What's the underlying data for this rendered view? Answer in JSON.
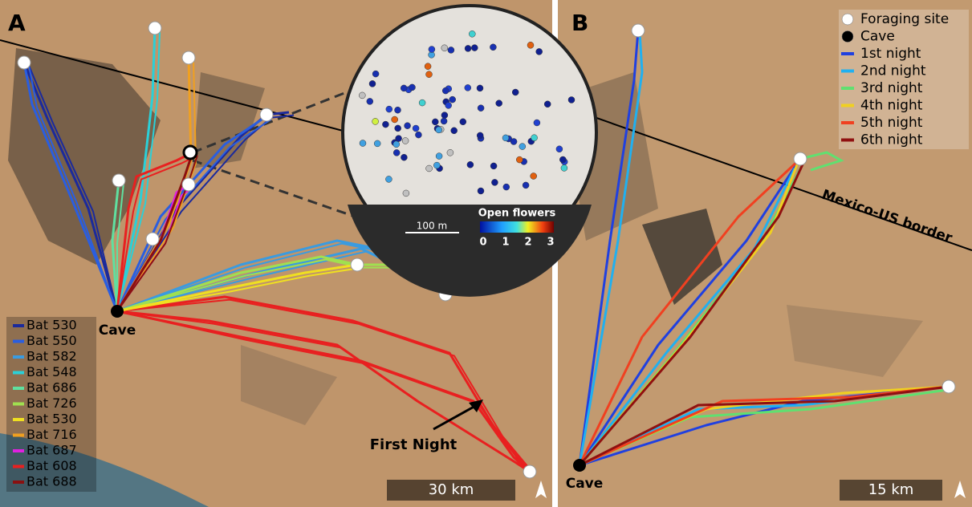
{
  "panel_a": {
    "label": "A",
    "cave_label": "Cave",
    "annotation": "First Night",
    "scale_bar": "30 km",
    "legend": [
      {
        "name": "Bat 530",
        "color": "#1b2a9c"
      },
      {
        "name": "Bat 550",
        "color": "#2a5ee0"
      },
      {
        "name": "Bat 582",
        "color": "#3a9be0"
      },
      {
        "name": "Bat 548",
        "color": "#2ad0d8"
      },
      {
        "name": "Bat 686",
        "color": "#5fe0a0"
      },
      {
        "name": "Bat 726",
        "color": "#a0e050"
      },
      {
        "name": "Bat 530",
        "color": "#f0e020"
      },
      {
        "name": "Bat 716",
        "color": "#f0a020"
      },
      {
        "name": "Bat 687",
        "color": "#e020e0"
      },
      {
        "name": "Bat 608",
        "color": "#e82020"
      },
      {
        "name": "Bat 688",
        "color": "#8a1010"
      }
    ],
    "inset": {
      "scale_bar": "100 m",
      "colorbar_title": "Open flowers",
      "colorbar_ticks": [
        0,
        1,
        2,
        3
      ]
    }
  },
  "panel_b": {
    "label": "B",
    "cave_label": "Cave",
    "border_label": "Mexico-US border",
    "scale_bar": "15 km",
    "legend": [
      {
        "name": "Foraging site",
        "color": "#ffffff"
      },
      {
        "name": "Cave",
        "color": "#000000"
      },
      {
        "name": "1st night",
        "color": "#2040e0"
      },
      {
        "name": "2nd night",
        "color": "#20b0f0"
      },
      {
        "name": "3rd night",
        "color": "#60e070"
      },
      {
        "name": "4th night",
        "color": "#f0d020"
      },
      {
        "name": "5th night",
        "color": "#f04020"
      },
      {
        "name": "6th night",
        "color": "#901010"
      }
    ]
  }
}
